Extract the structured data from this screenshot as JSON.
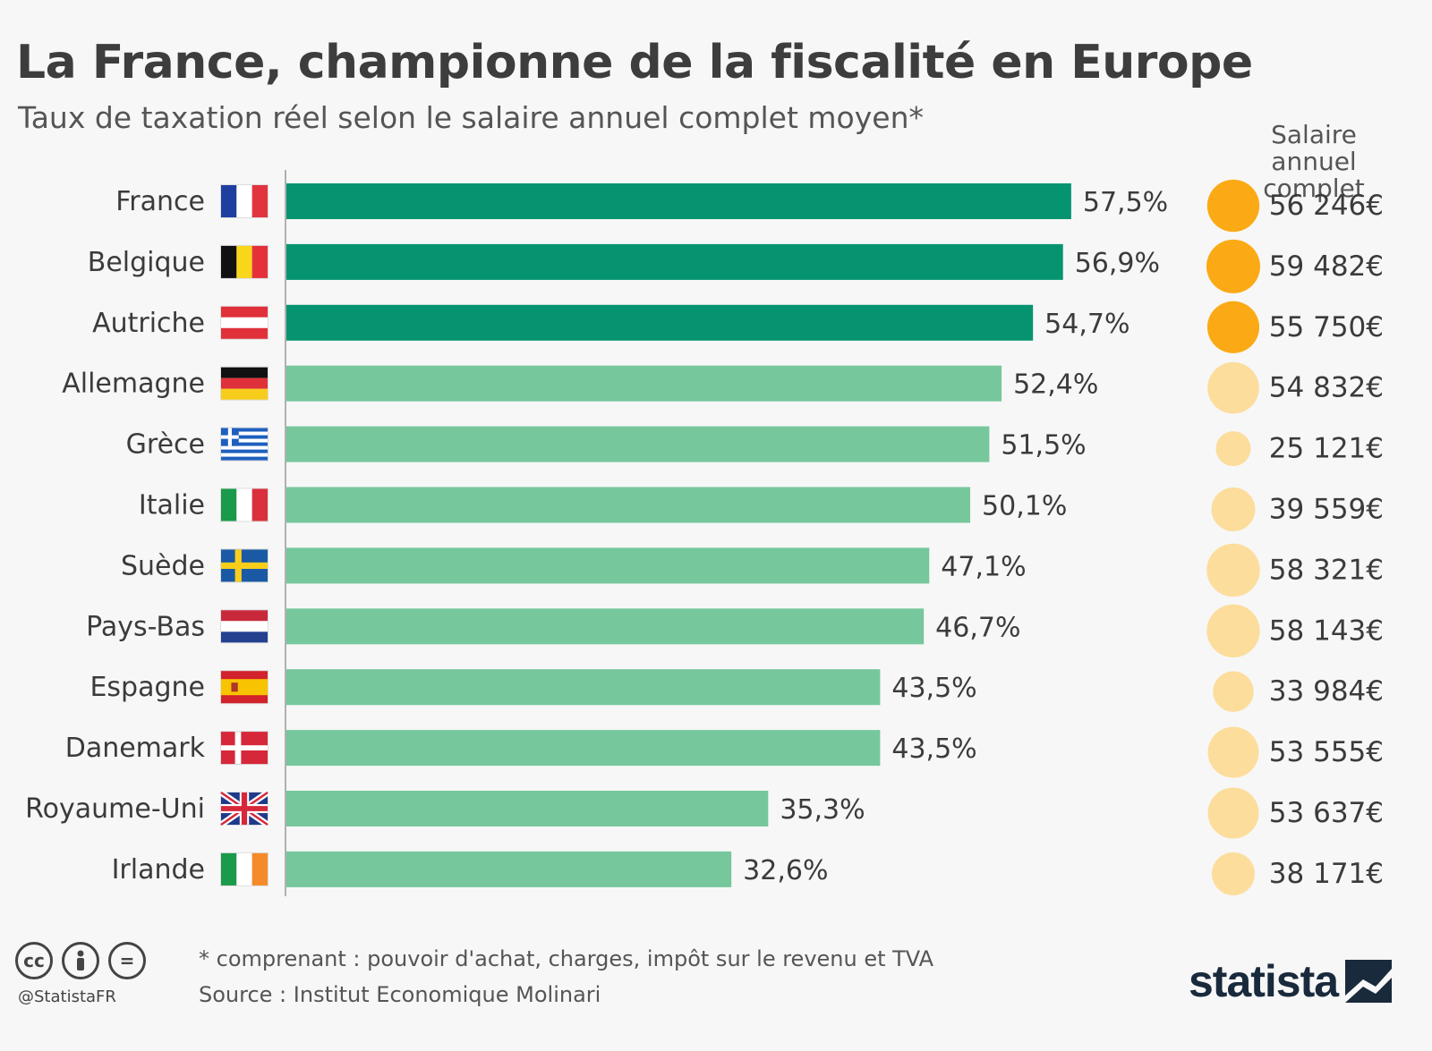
{
  "title": "La France, championne de la fiscalité en Europe",
  "subtitle": "Taux de taxation réel selon le salaire annuel complet moyen*",
  "salary_heading": "Salaire annuel complet",
  "colors": {
    "bar_highlight": "#069470",
    "bar_normal": "#76c79c",
    "bubble_highlight": "#fbaa15",
    "bubble_normal": "#fcdd9c",
    "axis": "#999999",
    "label_text": "#3b3b3b"
  },
  "chart_data": {
    "type": "bar",
    "orientation": "horizontal",
    "categories": [
      "France",
      "Belgique",
      "Autriche",
      "Allemagne",
      "Grèce",
      "Italie",
      "Suède",
      "Pays-Bas",
      "Espagne",
      "Danemark",
      "Royaume-Uni",
      "Irlande"
    ],
    "values": [
      57.5,
      56.9,
      54.7,
      52.4,
      51.5,
      50.1,
      47.1,
      46.7,
      43.5,
      43.5,
      35.3,
      32.6
    ],
    "value_labels": [
      "57,5%",
      "56,9%",
      "54,7%",
      "52,4%",
      "51,5%",
      "50,1%",
      "47,1%",
      "46,7%",
      "43,5%",
      "43,5%",
      "35,3%",
      "32,6%"
    ],
    "highlighted": [
      true,
      true,
      true,
      false,
      false,
      false,
      false,
      false,
      false,
      false,
      false,
      false
    ],
    "xlim": [
      0,
      60
    ],
    "unit": "%",
    "secondary_series": {
      "name": "Salaire annuel complet",
      "type": "bubble",
      "values": [
        56246,
        59482,
        55750,
        54832,
        25121,
        39559,
        58321,
        58143,
        33984,
        53555,
        53637,
        38171
      ],
      "labels": [
        "56 246€",
        "59 482€",
        "55 750€",
        "54 832€",
        "25 121€",
        "39 559€",
        "58 321€",
        "58 143€",
        "33 984€",
        "53 555€",
        "53 637€",
        "38 171€"
      ]
    },
    "flags": [
      "flag-fr",
      "flag-be",
      "flag-at",
      "flag-de",
      "flag-gr",
      "flag-it",
      "flag-se",
      "flag-nl",
      "flag-es",
      "flag-dk",
      "flag-gb",
      "flag-ie"
    ]
  },
  "footnote": "* comprenant : pouvoir d'achat, charges, impôt sur le revenu et TVA",
  "source": "Source : Institut Economique Molinari",
  "license": {
    "icons": [
      "cc-icon",
      "by-icon",
      "nd-icon"
    ],
    "cc_text": "cc",
    "nd_text": "="
  },
  "handle": "@StatistaFR",
  "brand": "statista"
}
